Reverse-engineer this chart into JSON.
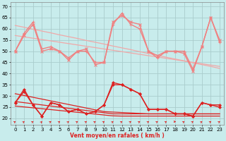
{
  "background_color": "#c8ecec",
  "grid_color": "#aacccc",
  "xlabel": "Vent moyen/en rafales ( km/h )",
  "ylim": [
    17,
    72
  ],
  "xlim": [
    -0.5,
    23.5
  ],
  "yticks": [
    20,
    25,
    30,
    35,
    40,
    45,
    50,
    55,
    60,
    65,
    70
  ],
  "xticks": [
    0,
    1,
    2,
    3,
    4,
    5,
    6,
    7,
    8,
    9,
    10,
    11,
    12,
    13,
    14,
    15,
    16,
    17,
    18,
    19,
    20,
    21,
    22,
    23
  ],
  "x": [
    0,
    1,
    2,
    3,
    4,
    5,
    6,
    7,
    8,
    9,
    10,
    11,
    12,
    13,
    14,
    15,
    16,
    17,
    18,
    19,
    20,
    21,
    22,
    23
  ],
  "rafales": [
    50,
    57,
    62,
    50,
    51,
    50,
    46,
    50,
    51,
    44,
    45,
    63,
    66,
    63,
    62,
    50,
    48,
    50,
    50,
    49,
    41,
    52,
    65,
    55
  ],
  "rafales2": [
    50,
    58,
    63,
    51,
    52,
    50,
    47,
    50,
    50,
    45,
    45,
    62,
    67,
    62,
    60,
    50,
    47,
    50,
    50,
    50,
    42,
    52,
    65,
    54
  ],
  "trend1_y": [
    61.5,
    60.7,
    59.8,
    59.0,
    58.2,
    57.3,
    56.5,
    55.7,
    54.8,
    54.0,
    53.2,
    52.3,
    51.5,
    50.7,
    49.8,
    49.0,
    48.2,
    47.3,
    46.5,
    45.7,
    44.8,
    44.0,
    43.2,
    42.3
  ],
  "trend2_y": [
    57.0,
    56.4,
    55.8,
    55.2,
    54.6,
    54.0,
    53.4,
    52.8,
    52.2,
    51.6,
    51.0,
    50.4,
    49.8,
    49.2,
    48.6,
    48.0,
    47.4,
    46.8,
    46.2,
    45.6,
    45.0,
    44.4,
    43.8,
    43.2
  ],
  "vent_moyen": [
    27,
    32,
    26,
    21,
    27,
    26,
    23,
    24,
    22,
    23,
    26,
    36,
    35,
    33,
    31,
    24,
    24,
    24,
    22,
    22,
    21,
    27,
    26,
    26
  ],
  "vent_moyen2": [
    27,
    33,
    26,
    21,
    27,
    26,
    23,
    24,
    22,
    23,
    26,
    35,
    35,
    33,
    31,
    24,
    24,
    24,
    22,
    22,
    21,
    27,
    26,
    25
  ],
  "trend_red1": [
    31.0,
    30.2,
    29.4,
    28.6,
    27.8,
    27.0,
    26.2,
    25.4,
    24.6,
    23.8,
    23.0,
    22.8,
    22.6,
    22.4,
    22.2,
    22.0,
    22.0,
    22.0,
    22.0,
    22.0,
    22.0,
    22.0,
    22.0,
    22.0
  ],
  "trend_red2": [
    27.5,
    27.0,
    26.5,
    26.0,
    25.5,
    25.0,
    24.5,
    24.0,
    23.5,
    23.0,
    22.5,
    22.0,
    22.0,
    22.0,
    22.0,
    22.0,
    22.0,
    22.0,
    22.0,
    22.0,
    22.0,
    22.0,
    22.0,
    22.0
  ],
  "trend_red3": [
    25.5,
    25.1,
    24.7,
    24.3,
    23.9,
    23.5,
    23.1,
    22.7,
    22.3,
    21.9,
    21.5,
    21.1,
    21.0,
    21.0,
    21.0,
    21.0,
    21.0,
    21.0,
    21.0,
    21.0,
    21.0,
    21.0,
    21.0,
    21.0
  ],
  "arrow_angles": [
    45,
    50,
    45,
    55,
    45,
    45,
    50,
    45,
    45,
    45,
    45,
    50,
    45,
    45,
    45,
    45,
    45,
    45,
    0,
    45,
    45,
    50,
    45,
    45
  ],
  "pink": "#f08080",
  "red": "#dd2222",
  "light_pink": "#f0a8a8"
}
